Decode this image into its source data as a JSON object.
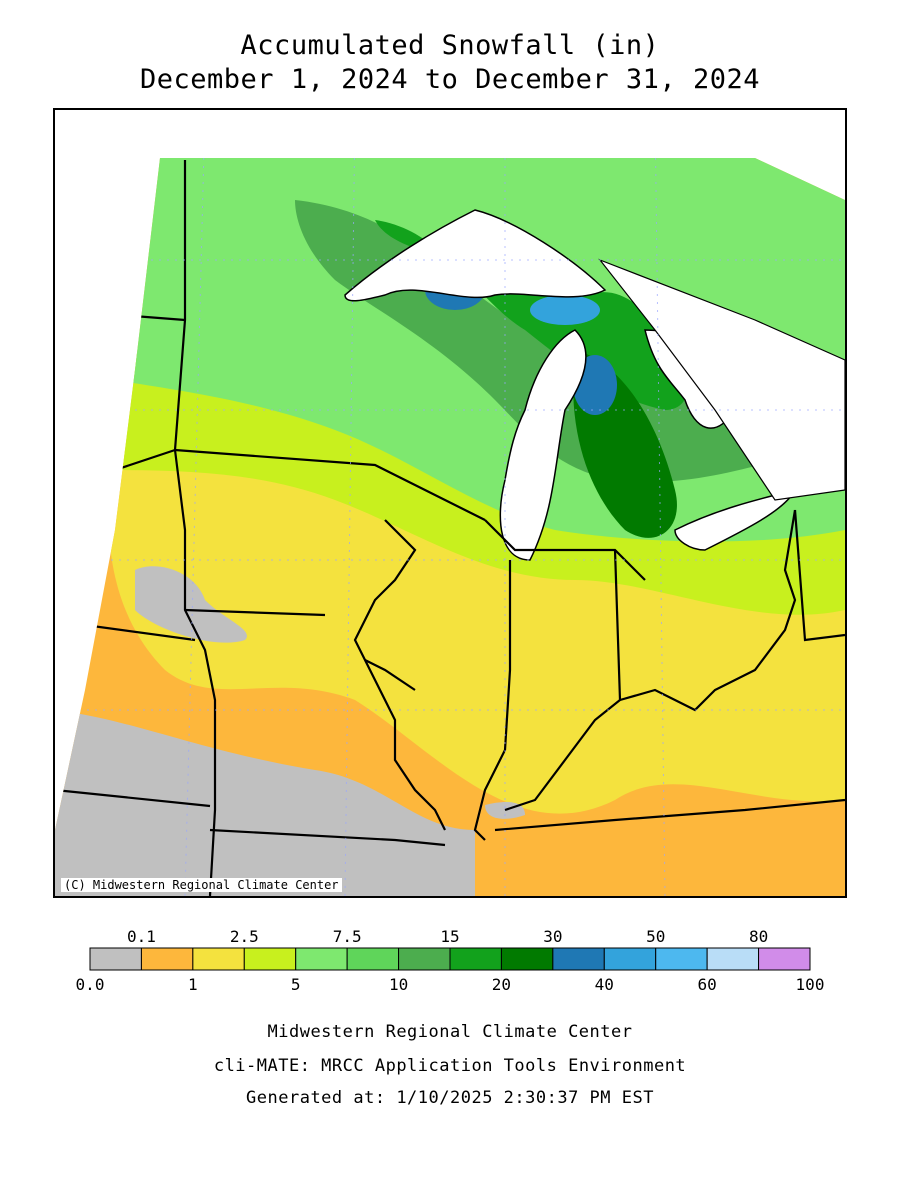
{
  "title": {
    "line1": "Accumulated Snowfall (in)",
    "line2": "December 1, 2024 to December 31, 2024"
  },
  "map": {
    "copyright": "(C) Midwestern Regional Climate Center",
    "water_color": "#ffffff",
    "boundary_color": "#000000",
    "regions": [
      {
        "name": "minnesota-north-band",
        "color": "#7ee86f"
      },
      {
        "name": "wisconsin-central",
        "color": "#7ee86f"
      },
      {
        "name": "lake-superior-shore",
        "color": "#12a21c"
      },
      {
        "name": "michigan-lee-snow",
        "color": "#12a21c"
      },
      {
        "name": "keweenaw-peak",
        "color": "#1f78b4"
      },
      {
        "name": "upper-peninsula-peak",
        "color": "#33a3dc"
      },
      {
        "name": "iowa-illinois",
        "color": "#f4e23e"
      },
      {
        "name": "missouri-kansas",
        "color": "#fdb73c"
      },
      {
        "name": "plains-trace",
        "color": "#c0c0c0"
      }
    ]
  },
  "legend": {
    "top_labels": [
      "0.1",
      "2.5",
      "7.5",
      "15",
      "30",
      "50",
      "80"
    ],
    "bottom_labels": [
      "0.0",
      "1",
      "5",
      "10",
      "20",
      "40",
      "60",
      "100"
    ],
    "bins": [
      {
        "from": 0.0,
        "to": 0.1,
        "color": "#c0c0c0"
      },
      {
        "from": 0.1,
        "to": 1,
        "color": "#fdb73c"
      },
      {
        "from": 1,
        "to": 2.5,
        "color": "#f4e23e"
      },
      {
        "from": 2.5,
        "to": 5,
        "color": "#c8f01e"
      },
      {
        "from": 5,
        "to": 7.5,
        "color": "#7ee86f"
      },
      {
        "from": 7.5,
        "to": 10,
        "color": "#5fd55a"
      },
      {
        "from": 10,
        "to": 15,
        "color": "#4cad4e"
      },
      {
        "from": 15,
        "to": 20,
        "color": "#12a21c"
      },
      {
        "from": 20,
        "to": 30,
        "color": "#017a00"
      },
      {
        "from": 30,
        "to": 40,
        "color": "#1f78b4"
      },
      {
        "from": 40,
        "to": 50,
        "color": "#33a3dc"
      },
      {
        "from": 50,
        "to": 60,
        "color": "#4db8ef"
      },
      {
        "from": 60,
        "to": 80,
        "color": "#b9ddf7"
      },
      {
        "from": 80,
        "to": 100,
        "color": "#d18ce9"
      }
    ]
  },
  "footer": {
    "line1": "Midwestern Regional Climate Center",
    "line2": "cli-MATE: MRCC Application Tools Environment",
    "line3": "Generated at: 1/10/2025 2:30:37 PM EST"
  }
}
